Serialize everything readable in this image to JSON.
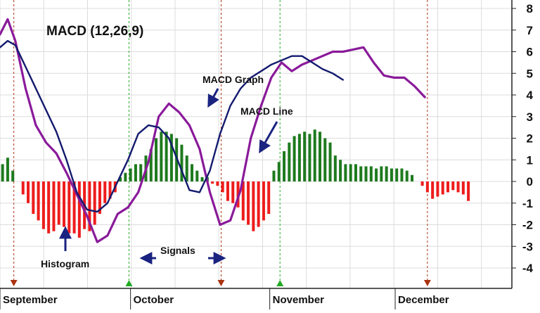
{
  "chart_data": {
    "type": "line",
    "title": "MACD (12,26,9)",
    "ylim": [
      -4.6,
      8.2
    ],
    "y_ticks": [
      8,
      7,
      6,
      5,
      4,
      3,
      2,
      1,
      0,
      -1,
      -2,
      -3,
      -4
    ],
    "x_range": [
      0,
      100
    ],
    "months": [
      {
        "label": "September",
        "x": 0
      },
      {
        "label": "October",
        "x": 25.5
      },
      {
        "label": "November",
        "x": 52.7
      },
      {
        "label": "December",
        "x": 77.2
      }
    ],
    "grid": {
      "vertical_every": 8.55,
      "horizontal": true
    },
    "colors": {
      "macd_graph": "#8a1a9a",
      "macd_line": "#131a6e",
      "histogram_positive": "#1e7a1e",
      "histogram_negative": "#ee1c1c",
      "buy_signal": "#22aa22",
      "sell_signal": "#aa3311",
      "annotation_arrow": "#1a2380"
    },
    "series": [
      {
        "key": "macd_graph",
        "x": [
          0,
          1.5,
          3,
          5,
          7,
          9,
          11,
          13,
          15,
          17,
          19,
          21,
          23,
          25,
          27,
          29,
          31,
          33,
          35,
          37,
          39,
          41,
          43,
          45,
          47,
          49,
          51,
          53,
          55,
          57,
          59,
          61,
          63,
          65,
          67,
          69,
          71,
          73,
          75,
          77,
          79,
          81,
          83,
          85,
          87,
          88.5,
          90,
          91.8
        ],
        "y": [
          6.8,
          7.5,
          6.5,
          4.3,
          2.6,
          1.8,
          1.3,
          0.4,
          -0.6,
          -1.6,
          -2.8,
          -2.5,
          -1.5,
          -1.2,
          -0.5,
          0.9,
          3.0,
          3.6,
          3.2,
          2.6,
          1.5,
          -0.5,
          -2.0,
          -1.8,
          -0.4,
          2.0,
          3.5,
          4.8,
          5.5,
          5.1,
          5.4,
          5.6,
          5.8,
          6.0,
          6.0,
          6.1,
          6.2,
          5.5,
          4.9,
          4.8,
          4.8,
          4.4,
          3.9,
          null,
          null,
          null,
          null,
          null
        ]
      },
      {
        "key": "macd_line",
        "x": [
          0,
          1.5,
          3,
          5,
          7,
          9,
          11,
          13,
          15,
          17,
          19,
          21,
          23,
          25,
          27,
          29,
          31,
          33,
          35,
          37,
          39,
          41,
          43,
          45,
          47,
          49,
          51,
          53,
          55,
          57,
          59,
          61,
          63,
          65,
          67,
          69,
          71,
          73,
          75,
          77,
          79,
          81,
          83,
          85,
          87,
          88.5,
          90,
          91.8
        ],
        "y": [
          6.2,
          6.5,
          6.3,
          5.3,
          4.3,
          3.3,
          2.3,
          1.0,
          -0.5,
          -1.3,
          -1.4,
          -1.0,
          0.0,
          1.0,
          2.2,
          2.6,
          2.5,
          2.0,
          0.8,
          -0.4,
          -0.5,
          0.5,
          2.2,
          3.5,
          4.3,
          4.8,
          5.1,
          5.4,
          5.6,
          5.8,
          5.8,
          5.5,
          5.2,
          5.0,
          4.7,
          null,
          null,
          null,
          null,
          null,
          null,
          null,
          null,
          null,
          null,
          null,
          null,
          null
        ]
      }
    ],
    "histogram": {
      "x": [
        0,
        1,
        2,
        3,
        4,
        5,
        6,
        7,
        8,
        9,
        10,
        11,
        12,
        13,
        14,
        15,
        16,
        17,
        18,
        19,
        20,
        21,
        22,
        23,
        24,
        25,
        26,
        27,
        28,
        29,
        30,
        31,
        32,
        33,
        34,
        35,
        36,
        37,
        38,
        39,
        40,
        41,
        42,
        43,
        44,
        45,
        46,
        47,
        48,
        49,
        50,
        51,
        52,
        53,
        54,
        55,
        56,
        57,
        58,
        59,
        60,
        61,
        62,
        63,
        64,
        65,
        66,
        67,
        68,
        69,
        70,
        71,
        72,
        73,
        74,
        75,
        76,
        77,
        78,
        79,
        80,
        81,
        82,
        83,
        84,
        85,
        86,
        87,
        88,
        89,
        90,
        91
      ],
      "y": [
        0.8,
        1.1,
        0.5,
        null,
        -0.6,
        -1.0,
        -1.5,
        -1.8,
        -2.2,
        -2.4,
        -2.3,
        -2.0,
        -2.1,
        -2.4,
        -2.4,
        -2.6,
        -2.2,
        -2.3,
        -2.0,
        -1.5,
        -1.0,
        -0.8,
        -0.5,
        0.2,
        0.4,
        0.6,
        0.8,
        0.8,
        1.2,
        1.5,
        2.0,
        2.3,
        2.3,
        2.2,
        2.0,
        1.7,
        1.2,
        0.8,
        0.5,
        0.2,
        0.2,
        -0.1,
        -0.2,
        -0.5,
        -0.9,
        -1.0,
        -1.2,
        -1.8,
        -2.0,
        -2.3,
        -2.1,
        -1.8,
        -1.5,
        0.5,
        0.9,
        1.4,
        1.8,
        2.1,
        2.2,
        2.3,
        2.2,
        2.4,
        2.3,
        2.0,
        1.8,
        1.2,
        1.0,
        0.8,
        0.8,
        0.8,
        0.7,
        0.7,
        0.7,
        0.6,
        0.7,
        0.7,
        0.6,
        0.6,
        0.6,
        0.5,
        0.3,
        null,
        -0.2,
        -0.5,
        -0.8,
        -0.7,
        -0.6,
        -0.5,
        -0.4,
        -0.5,
        -0.6,
        -0.9
      ]
    },
    "signals": [
      {
        "x": 2.7,
        "kind": "sell"
      },
      {
        "x": 25.2,
        "kind": "buy"
      },
      {
        "x": 43.2,
        "kind": "sell"
      },
      {
        "x": 54.7,
        "kind": "buy"
      },
      {
        "x": 83.5,
        "kind": "sell"
      }
    ],
    "annotations": {
      "macd_graph": "MACD Graph",
      "macd_line": "MACD Line",
      "histogram": "Histogram",
      "signals": "Signals"
    }
  }
}
